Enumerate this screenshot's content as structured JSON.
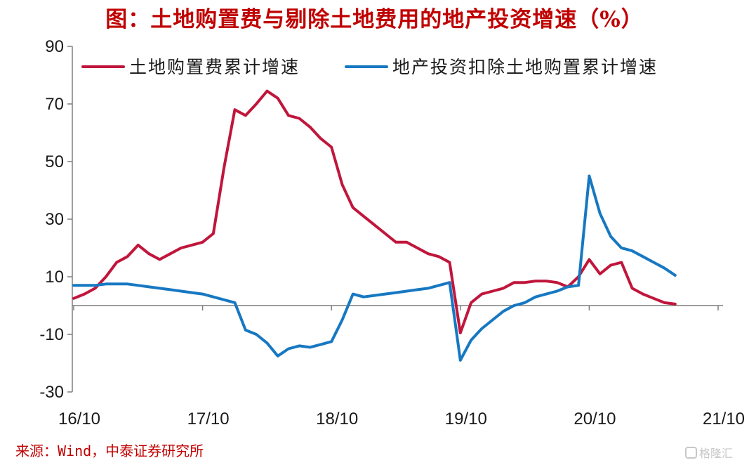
{
  "title": "图：土地购置费与剔除土地费用的地产投资增速（%）",
  "source": "来源：Wind，中泰证券研究所",
  "watermark": "格隆汇",
  "colors": {
    "land": "#c0163c",
    "ex_land": "#1778c2",
    "axis": "#7f7f7f",
    "title": "#c00000"
  },
  "chart_data": {
    "type": "line",
    "ylim": [
      -30,
      90
    ],
    "yticks": [
      -30,
      -10,
      10,
      30,
      50,
      70,
      90
    ],
    "ytick_labels": [
      "-30",
      "-10",
      "10",
      "30",
      "50",
      "70",
      "90"
    ],
    "xlim": [
      0,
      61
    ],
    "xticks": [
      0,
      12,
      24,
      36,
      48,
      60
    ],
    "xtick_labels": [
      "16/10",
      "17/10",
      "18/10",
      "19/10",
      "20/10",
      "21/10"
    ],
    "xlabel": "",
    "ylabel": "",
    "legend": "top",
    "series": [
      {
        "name": "土地购置费累计增速",
        "color": "#c0163c",
        "x": [
          0,
          1,
          2,
          3,
          4,
          5,
          6,
          7,
          8,
          9,
          10,
          11,
          12,
          13,
          14,
          15,
          16,
          17,
          18,
          19,
          20,
          21,
          22,
          23,
          24,
          25,
          26,
          27,
          28,
          29,
          30,
          31,
          32,
          33,
          34,
          35,
          36,
          37,
          38,
          39,
          40,
          41,
          42,
          43,
          44,
          45,
          46,
          47,
          48,
          49,
          50,
          51,
          52,
          53,
          54,
          55,
          56,
          57,
          58,
          59,
          60
        ],
        "values": [
          2.5,
          4,
          6,
          10,
          15,
          17,
          21,
          18,
          16,
          18,
          20,
          21,
          22,
          25,
          48,
          68,
          66,
          70,
          74.5,
          72,
          66,
          65,
          62,
          58,
          55,
          42,
          34,
          31,
          28,
          25,
          22,
          22,
          20,
          18,
          17,
          15,
          -9.5,
          1,
          4,
          5,
          6,
          8,
          8,
          8.5,
          8.5,
          8,
          6.5,
          10,
          16,
          11,
          14,
          15,
          6,
          4,
          2.5,
          1,
          0.5,
          null,
          null,
          null,
          null
        ]
      },
      {
        "name": "地产投资扣除土地购置累计增速",
        "color": "#1778c2",
        "x": [
          0,
          1,
          2,
          3,
          4,
          5,
          6,
          7,
          8,
          9,
          10,
          11,
          12,
          13,
          14,
          15,
          16,
          17,
          18,
          19,
          20,
          21,
          22,
          23,
          24,
          25,
          26,
          27,
          28,
          29,
          30,
          31,
          32,
          33,
          34,
          35,
          36,
          37,
          38,
          39,
          40,
          41,
          42,
          43,
          44,
          45,
          46,
          47,
          48,
          49,
          50,
          51,
          52,
          53,
          54,
          55,
          56,
          57,
          58,
          59,
          60
        ],
        "values": [
          7,
          7,
          7,
          7.5,
          7.5,
          7.5,
          7,
          6.5,
          6,
          5.5,
          5,
          4.5,
          4,
          3,
          2,
          1,
          -8.5,
          -10,
          -13,
          -17.5,
          -15,
          -14,
          -14.5,
          -13.5,
          -12.5,
          -5,
          4,
          3,
          3.5,
          4,
          4.5,
          5,
          5.5,
          6,
          7,
          8,
          -19,
          -12,
          -8,
          -5,
          -2,
          0,
          1,
          3,
          4,
          5,
          6.5,
          7,
          45,
          32,
          24,
          20,
          19,
          17,
          15,
          13,
          10.5,
          null,
          null,
          null,
          null
        ]
      }
    ]
  }
}
